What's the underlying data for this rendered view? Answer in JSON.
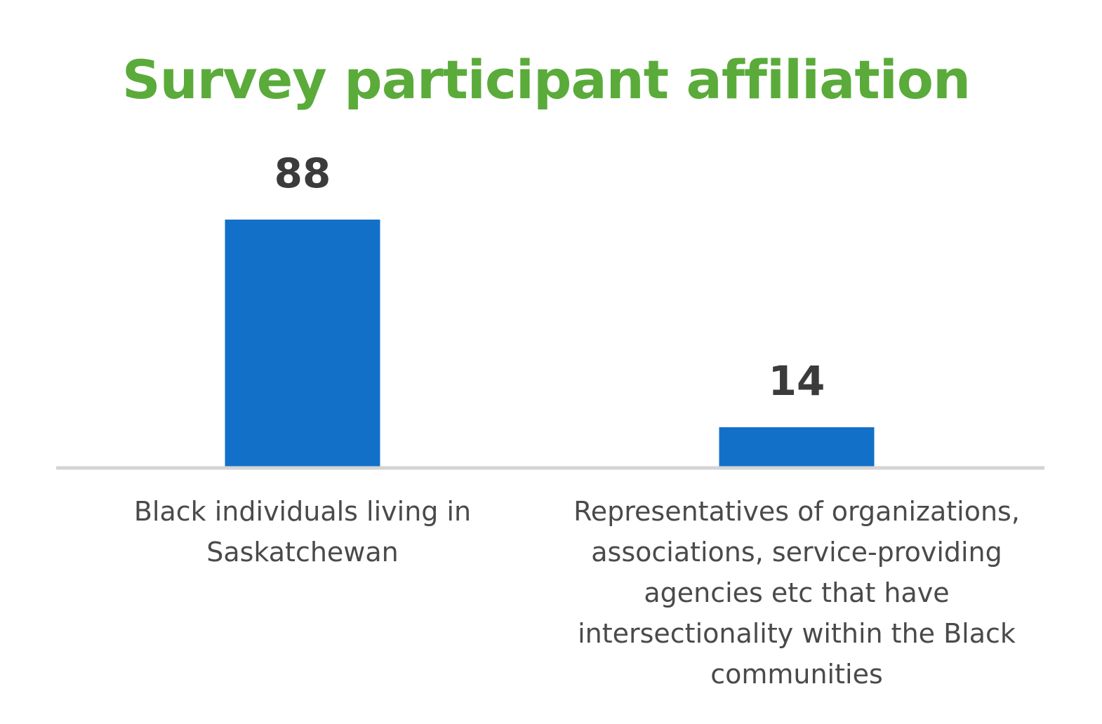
{
  "chart_data": {
    "type": "bar",
    "title": "Survey participant affiliation",
    "categories": [
      "Black individuals living in Saskatchewan",
      "Representatives of organizations, associations, service-providing agencies etc that have intersectionality within the Black communities"
    ],
    "category_lines": [
      [
        "Black individuals living in",
        "Saskatchewan"
      ],
      [
        "Representatives of organizations,",
        "associations, service-providing",
        "agencies etc that have",
        "intersectionality within the Black",
        "communities"
      ]
    ],
    "values": [
      88,
      14
    ],
    "data_labels": [
      "88",
      "14"
    ],
    "xlabel": "",
    "ylabel": "",
    "ylim": [
      0,
      88
    ],
    "grid": false,
    "legend": "none",
    "colors": {
      "title": "#5aab3a",
      "bar": "#1270c8",
      "axis": "#d4d4d4",
      "data_label": "#3b3b3b",
      "category_label": "#4a4a4a"
    }
  }
}
